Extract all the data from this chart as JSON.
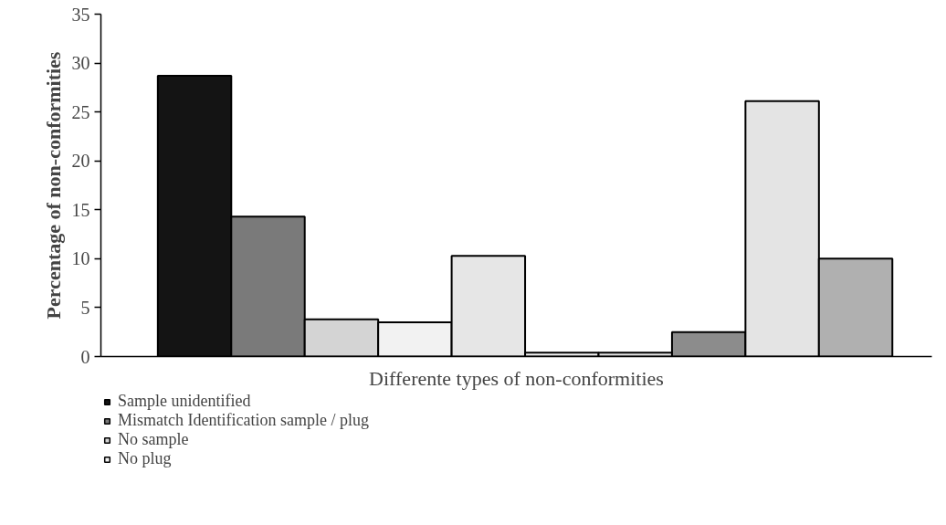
{
  "chart_data": {
    "type": "bar",
    "xlabel": "Differente types of non-conformities",
    "ylabel": "Percentage of non-conformities",
    "categories": [
      null
    ],
    "series": [
      {
        "name": "Sample unidentified",
        "color": "#141414",
        "values": [
          28.7
        ]
      },
      {
        "name": "Mismatch Identification sample / plug",
        "color": "#7a7a7a",
        "values": [
          14.3
        ]
      },
      {
        "name": "No sample",
        "color": "#d4d4d4",
        "values": [
          3.8
        ]
      },
      {
        "name": "No plug",
        "color": "#f2f2f2",
        "values": [
          3.5
        ]
      },
      {
        "color": "#e6e6e6",
        "values": [
          10.3
        ]
      },
      {
        "color": "#f0f0f0",
        "values": [
          0.4
        ]
      },
      {
        "color": "#e0e0e0",
        "values": [
          0.4
        ]
      },
      {
        "color": "#8c8c8c",
        "values": [
          2.5
        ]
      },
      {
        "color": "#e4e4e4",
        "values": [
          26.1
        ]
      },
      {
        "color": "#b0b0b0",
        "values": [
          10.0
        ]
      }
    ],
    "ylim": [
      0,
      35
    ],
    "yticks": [
      0,
      5,
      10,
      15,
      20,
      25,
      30,
      35
    ],
    "grid": false,
    "legend": "bottom",
    "tick_labels": "y"
  }
}
